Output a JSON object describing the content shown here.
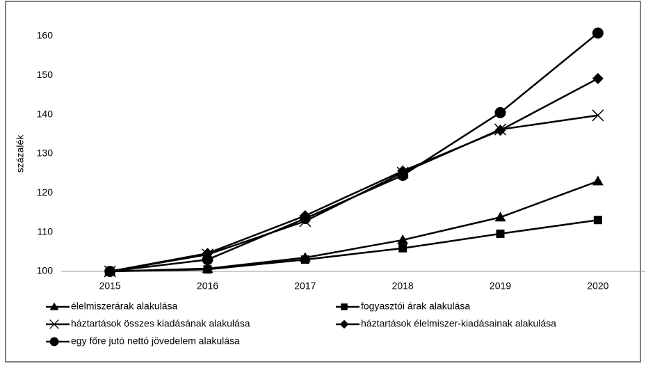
{
  "chart_data": {
    "type": "line",
    "y_label": "százalék",
    "categories": [
      "2015",
      "2016",
      "2017",
      "2018",
      "2019",
      "2020"
    ],
    "ylim": [
      100,
      160
    ],
    "yticks": [
      100,
      110,
      120,
      130,
      140,
      150,
      160
    ],
    "grid": false,
    "legend": "bottom",
    "series": [
      {
        "name": "élelmiszerárak alakulása",
        "color": "#000000",
        "marker": "triangle",
        "values": [
          100,
          100.7,
          103.5,
          108,
          113.8,
          123
        ]
      },
      {
        "name": "fogyasztói árak alakulása",
        "color": "#000000",
        "marker": "square",
        "values": [
          100,
          100.5,
          103,
          105.9,
          109.6,
          113.1
        ]
      },
      {
        "name": "háztartások összes kiadásának alakulása",
        "color": "#000000",
        "marker": "x",
        "values": [
          100,
          104.3,
          112.8,
          125.2,
          136.2,
          139.8
        ]
      },
      {
        "name": "háztartások élelmiszer-kiadásainak alakulása",
        "color": "#000000",
        "marker": "diamond",
        "values": [
          100,
          104.6,
          114.2,
          125.6,
          136,
          149.2
        ]
      },
      {
        "name": "egy főre jutó nettó jövedelem alakulása",
        "color": "#000000",
        "marker": "circle",
        "values": [
          100,
          103,
          113.5,
          124.5,
          140.5,
          160.8
        ]
      }
    ]
  }
}
